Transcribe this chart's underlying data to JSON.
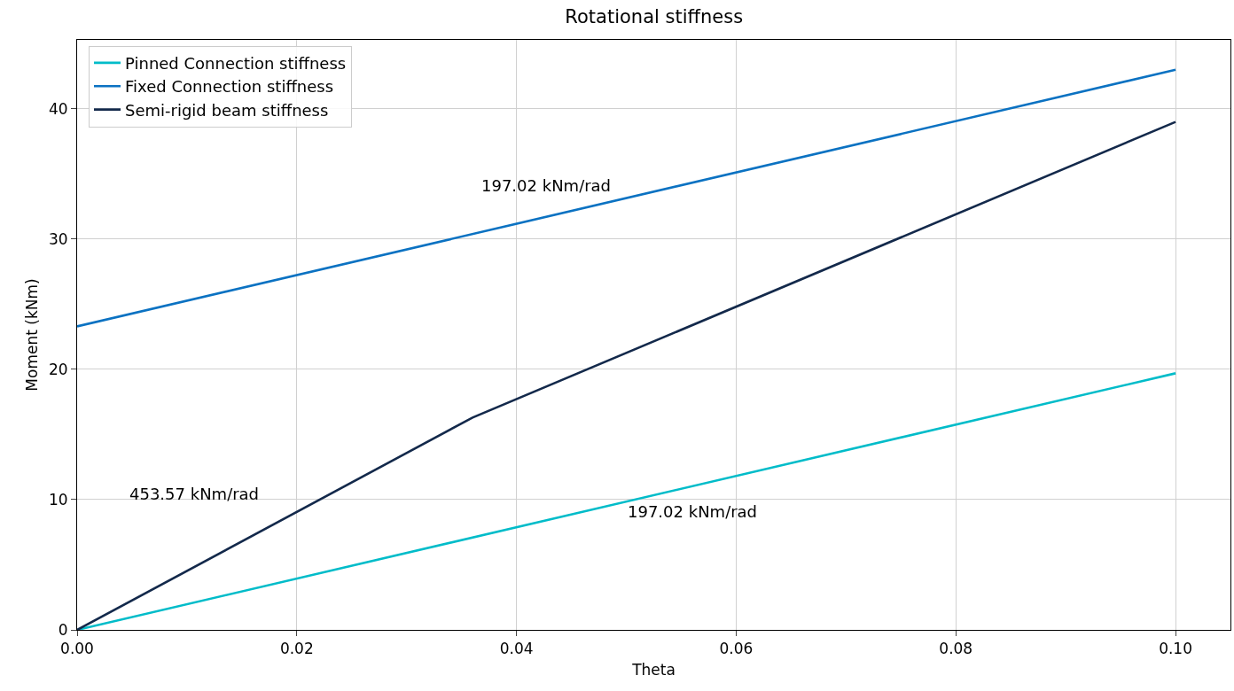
{
  "chart_data": {
    "type": "line",
    "title": "Rotational stiffness",
    "xlabel": "Theta",
    "ylabel": "Moment (kNm)",
    "series": [
      {
        "name": "Pinned Connection stiffness",
        "color": "#00bcc9",
        "x": [
          0,
          0.1
        ],
        "values": [
          0,
          19.7
        ]
      },
      {
        "name": "Fixed Connection stiffness",
        "color": "#0b72c2",
        "x": [
          0,
          0.1
        ],
        "values": [
          23.3,
          43.0
        ]
      },
      {
        "name": "Semi-rigid beam stiffness",
        "color": "#13294b",
        "x": [
          0,
          0.036,
          0.1
        ],
        "values": [
          0,
          16.3,
          39.0
        ]
      }
    ],
    "annotations": [
      "197.02 kNm/rad",
      "453.57 kNm/rad",
      "197.02 kNm/rad"
    ],
    "xlim": [
      0,
      0.105
    ],
    "xticks": [
      {
        "value": 0,
        "label": "0.00"
      },
      {
        "value": 0.02,
        "label": "0.02"
      },
      {
        "value": 0.04,
        "label": "0.04"
      },
      {
        "value": 0.06,
        "label": "0.06"
      },
      {
        "value": 0.08,
        "label": "0.08"
      },
      {
        "value": 0.1,
        "label": "0.10"
      }
    ],
    "ylim": [
      0,
      45.3
    ],
    "yticks": [
      0,
      10,
      20,
      30,
      40
    ],
    "grid": true,
    "legend": "top left",
    "line_style": "solid",
    "marker": "none"
  }
}
